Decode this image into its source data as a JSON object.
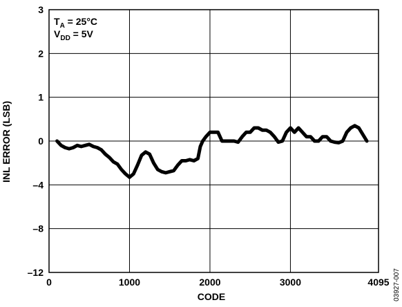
{
  "chart_data": {
    "type": "line",
    "xlabel": "CODE",
    "ylabel": "INL ERROR (LSB)",
    "xlim": [
      0,
      4095
    ],
    "x_ticks": [
      "0",
      "1000",
      "2000",
      "3000",
      "4095"
    ],
    "x_tick_values": [
      0,
      1000,
      2000,
      3000,
      4095
    ],
    "y_ticks": [
      "3",
      "2",
      "1",
      "0",
      "–4",
      "–8",
      "–12"
    ],
    "grid": true,
    "annotations": [
      {
        "main": "T",
        "sub": "A",
        "rest": " = 25°C"
      },
      {
        "main": "V",
        "sub": "DD",
        "rest": " = 5V"
      }
    ],
    "figure_id": "03927-007",
    "series": [
      {
        "x": [
          100,
          150,
          200,
          250,
          300,
          350,
          400,
          450,
          500,
          550,
          600,
          650,
          700,
          750,
          800,
          850,
          900,
          950,
          1000,
          1050,
          1100,
          1150,
          1200,
          1250,
          1300,
          1350,
          1400,
          1450,
          1500,
          1550,
          1600,
          1650,
          1700,
          1750,
          1800,
          1850,
          1880,
          1910,
          1950,
          2000,
          2050,
          2100,
          2150,
          2200,
          2250,
          2300,
          2350,
          2400,
          2450,
          2500,
          2550,
          2600,
          2650,
          2700,
          2750,
          2800,
          2850,
          2900,
          2950,
          3000,
          3050,
          3100,
          3150,
          3200,
          3250,
          3300,
          3350,
          3400,
          3450,
          3500,
          3550,
          3600,
          3650,
          3700,
          3750,
          3800,
          3850,
          3900,
          3950
        ],
        "y": [
          0.0,
          -0.4,
          -0.6,
          -0.7,
          -0.6,
          -0.4,
          -0.5,
          -0.4,
          -0.3,
          -0.5,
          -0.6,
          -0.8,
          -1.2,
          -1.5,
          -1.9,
          -2.1,
          -2.6,
          -3.0,
          -3.3,
          -3.0,
          -2.2,
          -1.3,
          -1.0,
          -1.2,
          -2.0,
          -2.6,
          -2.8,
          -2.9,
          -2.8,
          -2.7,
          -2.2,
          -1.8,
          -1.8,
          -1.7,
          -1.8,
          -1.6,
          -0.5,
          0.0,
          0.1,
          0.2,
          0.2,
          0.2,
          0.0,
          0.0,
          0.0,
          0.0,
          -0.1,
          0.1,
          0.2,
          0.2,
          0.3,
          0.3,
          0.25,
          0.25,
          0.2,
          0.1,
          -0.1,
          0.0,
          0.2,
          0.3,
          0.2,
          0.3,
          0.2,
          0.1,
          0.1,
          0.0,
          0.0,
          0.1,
          0.1,
          0.0,
          -0.1,
          -0.15,
          0.0,
          0.2,
          0.3,
          0.35,
          0.3,
          0.15,
          0.0
        ]
      }
    ]
  }
}
